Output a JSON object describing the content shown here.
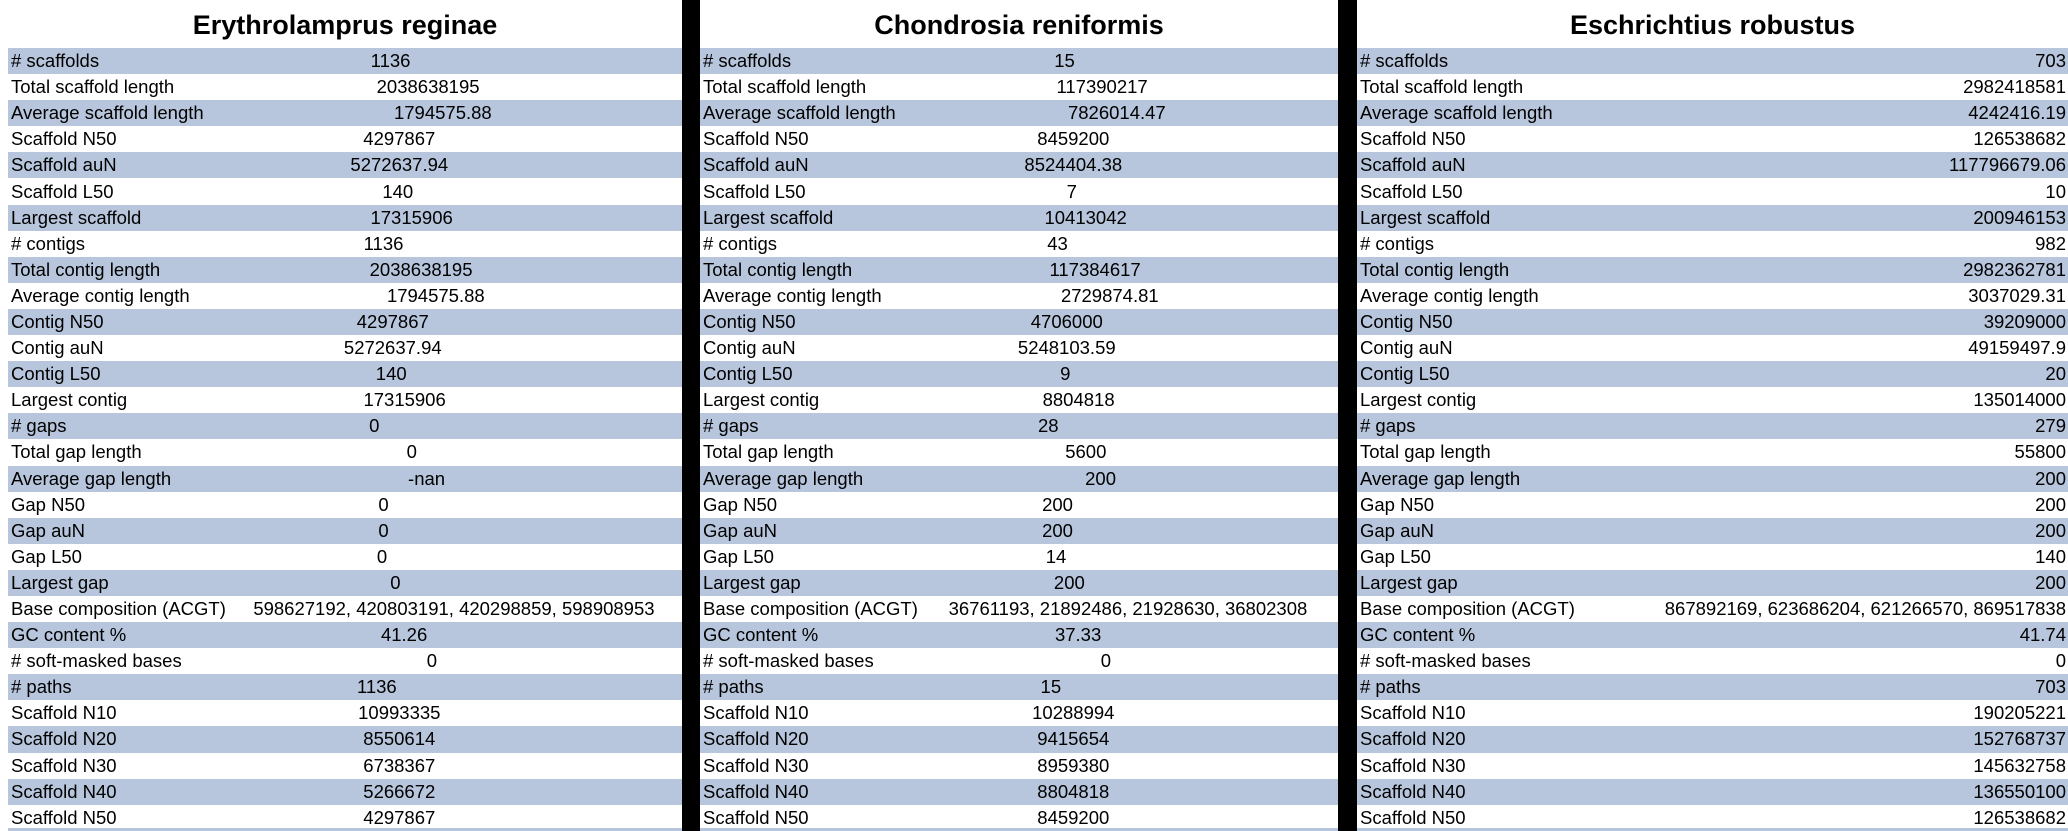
{
  "labels": [
    "# scaffolds",
    "Total scaffold length",
    "Average scaffold length",
    "Scaffold N50",
    "Scaffold auN",
    "Scaffold L50",
    "Largest scaffold",
    "# contigs",
    "Total contig length",
    "Average contig length",
    "Contig N50",
    "Contig auN",
    "Contig L50",
    "Largest contig",
    "# gaps",
    "Total gap length",
    "Average gap length",
    "Gap N50",
    "Gap auN",
    "Gap L50",
    "Largest gap",
    "Base composition (ACGT)",
    "GC content %",
    "# soft-masked bases",
    "# paths",
    "Scaffold N10",
    "Scaffold N20",
    "Scaffold N30",
    "Scaffold N40",
    "Scaffold N50"
  ],
  "panels": [
    {
      "title": "Erythrolamprus reginae",
      "values": [
        "1136",
        "2038638195",
        "1794575.88",
        "4297867",
        "5272637.94",
        "140",
        "17315906",
        "1136",
        "2038638195",
        "1794575.88",
        "4297867",
        "5272637.94",
        "140",
        "17315906",
        "0",
        "0",
        "-nan",
        "0",
        "0",
        "0",
        "0",
        "598627192, 420803191, 420298859, 598908953",
        "41.26",
        "0",
        "1136",
        "10993335",
        "8550614",
        "6738367",
        "5266672",
        "4297867"
      ]
    },
    {
      "title": "Chondrosia reniformis",
      "values": [
        "15",
        "117390217",
        "7826014.47",
        "8459200",
        "8524404.38",
        "7",
        "10413042",
        "43",
        "117384617",
        "2729874.81",
        "4706000",
        "5248103.59",
        "9",
        "8804818",
        "28",
        "5600",
        "200",
        "200",
        "200",
        "14",
        "200",
        "36761193, 21892486, 21928630, 36802308",
        "37.33",
        "0",
        "15",
        "10288994",
        "9415654",
        "8959380",
        "8804818",
        "8459200"
      ]
    },
    {
      "title": "Eschrichtius robustus",
      "values": [
        "703",
        "2982418581",
        "4242416.19",
        "126538682",
        "117796679.06",
        "10",
        "200946153",
        "982",
        "2982362781",
        "3037029.31",
        "39209000",
        "49159497.9",
        "20",
        "135014000",
        "279",
        "55800",
        "200",
        "200",
        "200",
        "140",
        "200",
        "867892169, 623686204, 621266570, 869517838",
        "41.74",
        "0",
        "703",
        "190205221",
        "152768737",
        "145632758",
        "136550100",
        "126538682"
      ]
    }
  ]
}
